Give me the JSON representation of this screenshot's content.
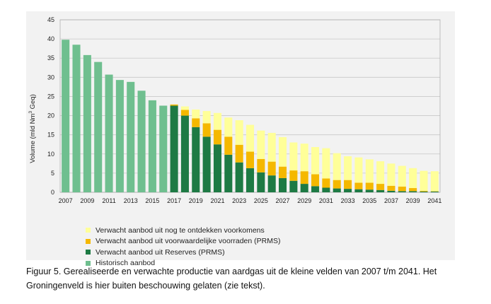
{
  "chart_data": {
    "type": "bar",
    "stacked": true,
    "ylabel_prefix": "Volume (mld Nm",
    "ylabel_sup": "3",
    "ylabel_suffix": " Geq)",
    "ylim": [
      0,
      45
    ],
    "yticks": [
      0,
      5,
      10,
      15,
      20,
      25,
      30,
      35,
      40,
      45
    ],
    "grid": true,
    "categories": [
      2007,
      2008,
      2009,
      2010,
      2011,
      2012,
      2013,
      2014,
      2015,
      2016,
      2017,
      2018,
      2019,
      2020,
      2021,
      2022,
      2023,
      2024,
      2025,
      2026,
      2027,
      2028,
      2029,
      2030,
      2031,
      2032,
      2033,
      2034,
      2035,
      2036,
      2037,
      2038,
      2039,
      2040,
      2041
    ],
    "xtick_labels": [
      "2007",
      "2009",
      "2011",
      "2013",
      "2015",
      "2017",
      "2019",
      "2021",
      "2023",
      "2025",
      "2027",
      "2029",
      "2031",
      "2033",
      "2035",
      "2037",
      "2039",
      "2041"
    ],
    "series": [
      {
        "name": "Historisch aanbod",
        "color": "#6fbf8f",
        "values": [
          39.8,
          38.5,
          35.8,
          34.0,
          30.7,
          29.3,
          28.8,
          26.5,
          24.0,
          22.6,
          0,
          0,
          0,
          0,
          0,
          0,
          0,
          0,
          0,
          0,
          0,
          0,
          0,
          0,
          0,
          0,
          0,
          0,
          0,
          0,
          0,
          0,
          0,
          0,
          0
        ]
      },
      {
        "name": "Verwacht aanbod uit Reserves (PRMS)",
        "color": "#1e7a44",
        "values": [
          0,
          0,
          0,
          0,
          0,
          0,
          0,
          0,
          0,
          0,
          22.6,
          20.0,
          17.0,
          14.5,
          12.5,
          9.8,
          7.8,
          6.3,
          5.2,
          4.4,
          3.7,
          3.0,
          2.2,
          1.6,
          1.2,
          1.0,
          0.9,
          0.8,
          0.7,
          0.6,
          0.4,
          0.3,
          0.3,
          0.2,
          0.2
        ]
      },
      {
        "name": "Verwacht aanbod uit voorwaardelijke voorraden (PRMS)",
        "color": "#f5b800",
        "values": [
          0,
          0,
          0,
          0,
          0,
          0,
          0,
          0,
          0,
          0,
          0.3,
          1.5,
          2.3,
          3.5,
          3.8,
          4.7,
          4.6,
          4.3,
          3.5,
          3.6,
          3.0,
          2.7,
          3.3,
          3.1,
          2.4,
          2.2,
          2.3,
          1.7,
          1.8,
          1.6,
          1.3,
          1.2,
          0.8,
          0.2,
          0.1
        ]
      },
      {
        "name": "Verwacht aanbod uit nog te ontdekken voorkomens",
        "color": "#ffff99",
        "values": [
          0,
          0,
          0,
          0,
          0,
          0,
          0,
          0,
          0,
          0,
          0,
          0.9,
          2.3,
          3.2,
          4.4,
          5.0,
          6.4,
          7.0,
          7.4,
          7.5,
          7.7,
          7.3,
          7.2,
          7.1,
          7.9,
          7.0,
          6.2,
          6.6,
          6.1,
          5.9,
          5.8,
          5.4,
          5.2,
          5.2,
          5.2
        ]
      }
    ],
    "legend": [
      {
        "label": "Verwacht aanbod uit nog te ontdekken voorkomens",
        "color": "#ffff99"
      },
      {
        "label": "Verwacht aanbod uit voorwaardelijke voorraden (PRMS)",
        "color": "#f5b800"
      },
      {
        "label": "Verwacht aanbod uit Reserves (PRMS)",
        "color": "#1e7a44"
      },
      {
        "label": "Historisch aanbod",
        "color": "#6fbf8f"
      }
    ],
    "legend_position": "bottom-left"
  },
  "caption": "Figuur 5. Gerealiseerde en verwachte productie van aardgas uit de kleine velden van 2007 t/m 2041. Het Groningenveld is hier buiten beschouwing gelaten (zie tekst)."
}
